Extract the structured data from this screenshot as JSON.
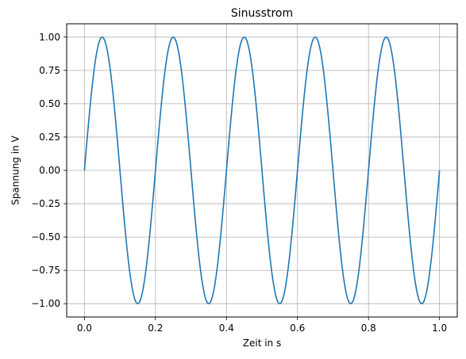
{
  "chart_data": {
    "type": "line",
    "title": "Sinusstrom",
    "xlabel": "Zeit in s",
    "ylabel": "Spannung in V",
    "xlim": [
      -0.05,
      1.05
    ],
    "ylim": [
      -1.1,
      1.1
    ],
    "x_ticks": [
      0.0,
      0.2,
      0.4,
      0.6,
      0.8,
      1.0
    ],
    "x_tick_labels": [
      "0.0",
      "0.2",
      "0.4",
      "0.6",
      "0.8",
      "1.0"
    ],
    "y_ticks": [
      1.0,
      0.75,
      0.5,
      0.25,
      0.0,
      -0.25,
      -0.5,
      -0.75,
      -1.0
    ],
    "y_tick_labels": [
      "1.00",
      "0.75",
      "0.50",
      "0.25",
      "0.00",
      "−0.25",
      "−0.50",
      "−0.75",
      "−1.00"
    ],
    "grid": true,
    "series": [
      {
        "function": "sin(2*pi*5*t)",
        "amplitude": 1.0,
        "frequency_hz": 5,
        "x_range": [
          0.0,
          1.0
        ],
        "color": "#1f77b4",
        "x": [
          0.0,
          0.025,
          0.05,
          0.075,
          0.1,
          0.125,
          0.15,
          0.175,
          0.2,
          0.225,
          0.25,
          0.275,
          0.3,
          0.325,
          0.35,
          0.375,
          0.4,
          0.425,
          0.45,
          0.475,
          0.5,
          0.525,
          0.55,
          0.575,
          0.6,
          0.625,
          0.65,
          0.675,
          0.7,
          0.725,
          0.75,
          0.775,
          0.8,
          0.825,
          0.85,
          0.875,
          0.9,
          0.925,
          0.95,
          0.975,
          1.0
        ],
        "y": [
          0.0,
          0.707,
          1.0,
          0.707,
          0.0,
          -0.707,
          -1.0,
          -0.707,
          0.0,
          0.707,
          1.0,
          0.707,
          0.0,
          -0.707,
          -1.0,
          -0.707,
          0.0,
          0.707,
          1.0,
          0.707,
          0.0,
          -0.707,
          -1.0,
          -0.707,
          0.0,
          0.707,
          1.0,
          0.707,
          0.0,
          -0.707,
          -1.0,
          -0.707,
          0.0,
          0.707,
          1.0,
          0.707,
          0.0,
          -0.707,
          -1.0,
          -0.707,
          0.0
        ]
      }
    ]
  }
}
